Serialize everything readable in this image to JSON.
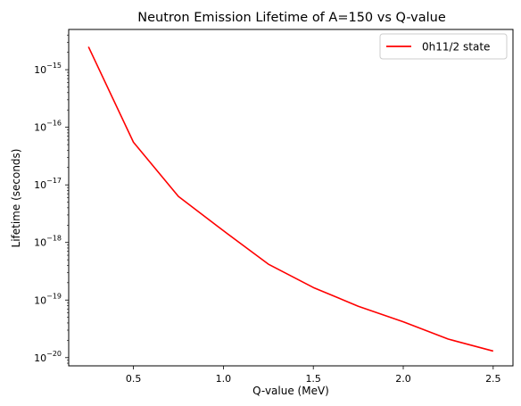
{
  "chart_data": {
    "type": "line",
    "title": "Neutron Emission Lifetime of A=150 vs Q-value",
    "xlabel": "Q-value (MeV)",
    "ylabel": "Lifetime (seconds)",
    "xlim": [
      0.14,
      2.61
    ],
    "ylim": [
      7.2e-21,
      5e-15
    ],
    "yscale": "log",
    "grid": false,
    "legend_position": "top-right",
    "x_ticks": [
      {
        "value": 0.5,
        "label": "0.5"
      },
      {
        "value": 1.0,
        "label": "1.0"
      },
      {
        "value": 1.5,
        "label": "1.5"
      },
      {
        "value": 2.0,
        "label": "2.0"
      },
      {
        "value": 2.5,
        "label": "2.5"
      }
    ],
    "y_ticks": [
      {
        "exp": -20,
        "base": "10",
        "sup": "−20"
      },
      {
        "exp": -19,
        "base": "10",
        "sup": "−19"
      },
      {
        "exp": -18,
        "base": "10",
        "sup": "−18"
      },
      {
        "exp": -17,
        "base": "10",
        "sup": "−17"
      },
      {
        "exp": -16,
        "base": "10",
        "sup": "−16"
      },
      {
        "exp": -15,
        "base": "10",
        "sup": "−15"
      }
    ],
    "series": [
      {
        "name": "0h11/2 state",
        "color": "#ff0000",
        "x": [
          0.25,
          0.5,
          0.75,
          1.0,
          1.25,
          1.5,
          1.75,
          2.0,
          2.25,
          2.5
        ],
        "y": [
          2.5e-15,
          5.5e-17,
          6.3e-18,
          1.6e-18,
          4.2e-19,
          1.65e-19,
          7.8e-20,
          4.2e-20,
          2.1e-20,
          1.3e-20
        ]
      }
    ]
  }
}
